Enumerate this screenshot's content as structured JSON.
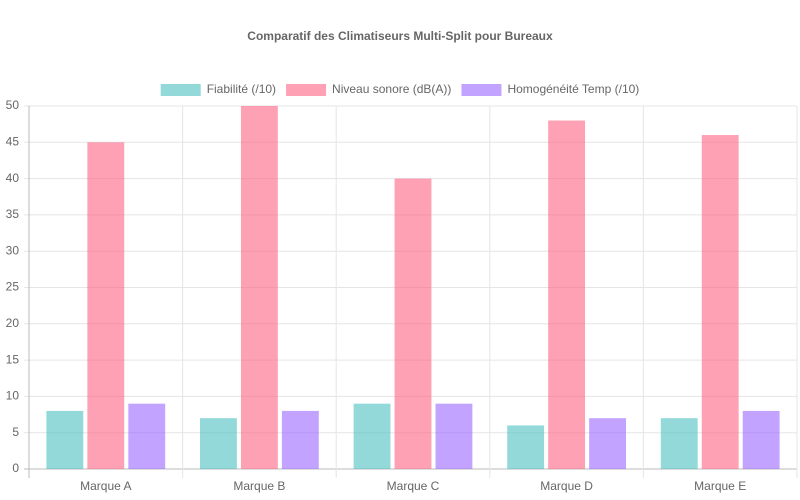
{
  "chart_data": {
    "type": "bar",
    "title": "Comparatif des Climatiseurs Multi-Split pour Bureaux",
    "categories": [
      "Marque A",
      "Marque B",
      "Marque C",
      "Marque D",
      "Marque E"
    ],
    "series": [
      {
        "name": "Fiabilité (/10)",
        "color": "rgba(75, 192, 192, 0.6)",
        "values": [
          8,
          7,
          9,
          6,
          7
        ]
      },
      {
        "name": "Niveau sonore (dB(A))",
        "color": "rgba(255, 99, 132, 0.6)",
        "values": [
          45,
          50,
          40,
          48,
          46
        ]
      },
      {
        "name": "Homogénéité Temp (/10)",
        "color": "rgba(153, 102, 255, 0.6)",
        "values": [
          9,
          8,
          9,
          7,
          8
        ]
      }
    ],
    "ylim": [
      0,
      50
    ],
    "yticks": [
      0,
      5,
      10,
      15,
      20,
      25,
      30,
      35,
      40,
      45,
      50
    ],
    "grid": true,
    "legend": "top"
  }
}
